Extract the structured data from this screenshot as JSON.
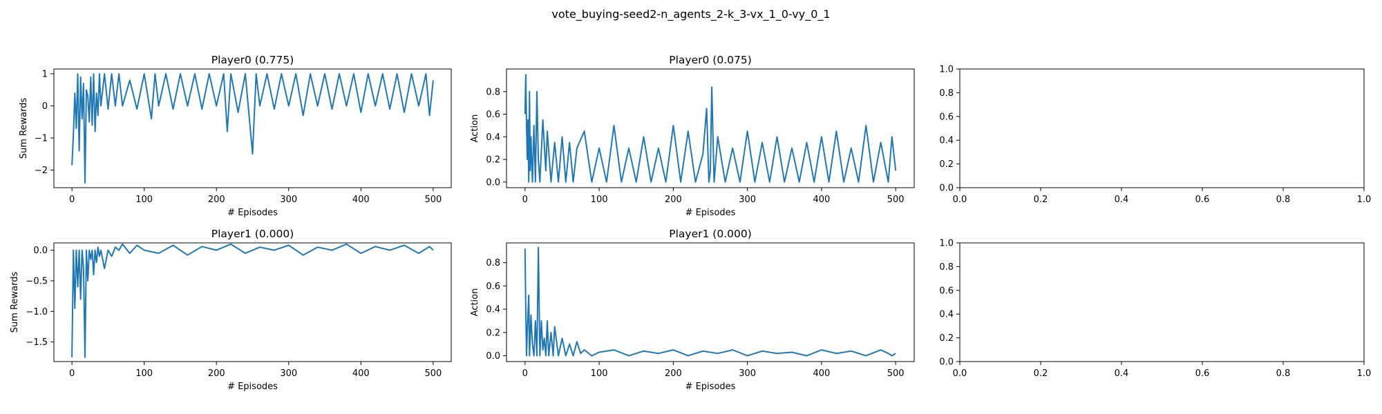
{
  "figure": {
    "suptitle": "vote_buying-seed2-n_agents_2-k_3-vx_1_0-vy_0_1"
  },
  "chart_data": [
    {
      "type": "line",
      "panel": "p0-reward",
      "title": "Player0 (0.775)",
      "xlabel": "# Episodes",
      "ylabel": "Sum Rewards",
      "xlim": [
        -25,
        525
      ],
      "ylim": [
        -2.55,
        1.15
      ],
      "xticks": [
        0,
        100,
        200,
        300,
        400,
        500
      ],
      "yticks": [
        -2,
        -1,
        0,
        1
      ],
      "series": [
        {
          "color": "#1f77b4",
          "x": [
            0,
            2,
            4,
            6,
            8,
            10,
            12,
            14,
            16,
            18,
            20,
            22,
            24,
            26,
            28,
            30,
            32,
            34,
            36,
            38,
            40,
            45,
            50,
            55,
            60,
            65,
            70,
            80,
            90,
            100,
            110,
            115,
            120,
            130,
            140,
            150,
            160,
            170,
            180,
            190,
            200,
            210,
            215,
            220,
            230,
            240,
            250,
            255,
            260,
            270,
            280,
            290,
            300,
            310,
            320,
            330,
            340,
            350,
            360,
            370,
            380,
            390,
            400,
            410,
            420,
            430,
            440,
            450,
            460,
            470,
            480,
            490,
            495,
            500
          ],
          "y": [
            -1.85,
            -0.9,
            0.4,
            -0.7,
            1.0,
            -1.4,
            0.9,
            -0.4,
            0.7,
            -2.4,
            0.5,
            0.3,
            -0.5,
            0.9,
            -0.6,
            1.0,
            -0.8,
            0.4,
            -0.3,
            1.0,
            0.0,
            1.0,
            -0.1,
            1.0,
            0.0,
            1.0,
            0.0,
            0.8,
            -0.1,
            1.0,
            -0.4,
            1.0,
            0.0,
            1.0,
            -0.1,
            1.0,
            0.0,
            1.0,
            -0.1,
            1.0,
            0.0,
            1.0,
            -0.8,
            1.0,
            -0.2,
            1.0,
            -1.5,
            1.0,
            0.0,
            1.0,
            -0.1,
            1.0,
            0.0,
            1.0,
            -0.3,
            1.0,
            0.0,
            1.0,
            -0.1,
            1.0,
            0.0,
            1.0,
            -0.2,
            1.0,
            0.0,
            1.0,
            -0.1,
            1.0,
            -0.2,
            1.0,
            0.0,
            1.0,
            -0.3,
            0.8
          ]
        }
      ]
    },
    {
      "type": "line",
      "panel": "p0-action",
      "title": "Player0 (0.075)",
      "xlabel": "# Episodes",
      "ylabel": "Action",
      "xlim": [
        -25,
        525
      ],
      "ylim": [
        -0.05,
        1.0
      ],
      "xticks": [
        0,
        100,
        200,
        300,
        400,
        500
      ],
      "yticks": [
        0.0,
        0.2,
        0.4,
        0.6,
        0.8
      ],
      "series": [
        {
          "color": "#1f77b4",
          "x": [
            0,
            1,
            2,
            3,
            4,
            5,
            6,
            7,
            8,
            10,
            12,
            14,
            16,
            18,
            20,
            24,
            28,
            30,
            35,
            40,
            45,
            50,
            55,
            60,
            65,
            70,
            80,
            90,
            100,
            110,
            120,
            130,
            140,
            150,
            160,
            170,
            180,
            190,
            200,
            210,
            220,
            230,
            240,
            245,
            248,
            250,
            252,
            255,
            260,
            270,
            280,
            290,
            300,
            310,
            320,
            330,
            340,
            350,
            360,
            370,
            380,
            390,
            400,
            410,
            420,
            430,
            440,
            450,
            460,
            470,
            480,
            490,
            495,
            500
          ],
          "y": [
            0.6,
            0.95,
            0.5,
            0.2,
            0.55,
            0.0,
            0.8,
            0.1,
            0.4,
            0.0,
            0.5,
            0.0,
            0.8,
            0.2,
            0.0,
            0.55,
            0.1,
            0.45,
            0.0,
            0.35,
            0.0,
            0.4,
            0.0,
            0.35,
            0.0,
            0.3,
            0.45,
            0.0,
            0.3,
            0.0,
            0.5,
            0.0,
            0.3,
            0.0,
            0.4,
            0.0,
            0.3,
            0.0,
            0.5,
            0.0,
            0.45,
            0.0,
            0.25,
            0.65,
            0.0,
            0.1,
            0.84,
            0.0,
            0.4,
            0.0,
            0.3,
            0.0,
            0.45,
            0.0,
            0.35,
            0.0,
            0.4,
            0.0,
            0.3,
            0.0,
            0.35,
            0.0,
            0.4,
            0.0,
            0.45,
            0.0,
            0.3,
            0.0,
            0.5,
            0.0,
            0.35,
            0.0,
            0.4,
            0.1
          ]
        }
      ]
    },
    {
      "type": "line",
      "panel": "p0-empty",
      "title": "",
      "xlabel": "",
      "ylabel": "",
      "xlim": [
        0,
        1
      ],
      "ylim": [
        0,
        1
      ],
      "xticks": [
        0.0,
        0.2,
        0.4,
        0.6,
        0.8,
        1.0
      ],
      "yticks": [
        0.0,
        0.2,
        0.4,
        0.6,
        0.8,
        1.0
      ],
      "series": []
    },
    {
      "type": "line",
      "panel": "p1-reward",
      "title": "Player1 (0.000)",
      "xlabel": "# Episodes",
      "ylabel": "Sum Rewards",
      "xlim": [
        -25,
        525
      ],
      "ylim": [
        -1.82,
        0.12
      ],
      "xticks": [
        0,
        100,
        200,
        300,
        400,
        500
      ],
      "yticks": [
        -1.5,
        -1.0,
        -0.5,
        0.0
      ],
      "series": [
        {
          "color": "#1f77b4",
          "x": [
            0,
            2,
            4,
            6,
            8,
            10,
            12,
            14,
            16,
            18,
            20,
            22,
            24,
            26,
            28,
            30,
            32,
            34,
            36,
            38,
            40,
            45,
            50,
            55,
            60,
            65,
            70,
            80,
            90,
            100,
            120,
            140,
            160,
            180,
            200,
            220,
            240,
            260,
            280,
            300,
            320,
            340,
            360,
            380,
            400,
            420,
            440,
            460,
            480,
            495,
            500
          ],
          "y": [
            -1.75,
            0.0,
            -0.95,
            0.0,
            -0.6,
            0.0,
            -0.8,
            0.0,
            -0.3,
            -1.75,
            0.0,
            -0.5,
            0.0,
            -0.15,
            0.0,
            -0.4,
            0.0,
            -0.2,
            0.05,
            -0.1,
            0.0,
            -0.3,
            0.0,
            -0.1,
            0.05,
            0.0,
            0.1,
            -0.05,
            0.08,
            0.0,
            -0.05,
            0.08,
            -0.08,
            0.06,
            0.0,
            0.1,
            -0.05,
            0.05,
            0.0,
            0.08,
            -0.08,
            0.05,
            0.0,
            0.1,
            -0.05,
            0.06,
            0.0,
            0.08,
            -0.05,
            0.06,
            0.0
          ]
        }
      ]
    },
    {
      "type": "line",
      "panel": "p1-action",
      "title": "Player1 (0.000)",
      "xlabel": "# Episodes",
      "ylabel": "Action",
      "xlim": [
        -25,
        525
      ],
      "ylim": [
        -0.05,
        0.97
      ],
      "xticks": [
        0,
        100,
        200,
        300,
        400,
        500
      ],
      "yticks": [
        0.0,
        0.2,
        0.4,
        0.6,
        0.8
      ],
      "series": [
        {
          "color": "#1f77b4",
          "x": [
            0,
            1,
            2,
            3,
            5,
            6,
            8,
            10,
            12,
            14,
            16,
            18,
            20,
            22,
            24,
            26,
            28,
            30,
            32,
            35,
            38,
            40,
            45,
            50,
            55,
            60,
            65,
            70,
            75,
            80,
            90,
            100,
            120,
            140,
            160,
            180,
            200,
            220,
            240,
            260,
            280,
            300,
            320,
            340,
            360,
            380,
            400,
            420,
            440,
            460,
            480,
            490,
            495,
            500
          ],
          "y": [
            0.92,
            0.4,
            0.0,
            0.2,
            0.52,
            0.0,
            0.35,
            0.1,
            0.0,
            0.3,
            0.0,
            0.93,
            0.0,
            0.3,
            0.05,
            0.15,
            0.0,
            0.3,
            0.0,
            0.2,
            0.0,
            0.25,
            0.0,
            0.15,
            0.0,
            0.1,
            0.0,
            0.12,
            0.02,
            0.05,
            0.0,
            0.03,
            0.05,
            0.0,
            0.04,
            0.02,
            0.05,
            0.0,
            0.04,
            0.02,
            0.05,
            0.0,
            0.04,
            0.02,
            0.03,
            0.0,
            0.05,
            0.02,
            0.04,
            0.0,
            0.05,
            0.02,
            0.0,
            0.02
          ]
        }
      ]
    },
    {
      "type": "line",
      "panel": "p1-empty",
      "title": "",
      "xlabel": "",
      "ylabel": "",
      "xlim": [
        0,
        1
      ],
      "ylim": [
        0,
        1
      ],
      "xticks": [
        0.0,
        0.2,
        0.4,
        0.6,
        0.8,
        1.0
      ],
      "yticks": [
        0.0,
        0.2,
        0.4,
        0.6,
        0.8,
        1.0
      ],
      "series": []
    }
  ]
}
